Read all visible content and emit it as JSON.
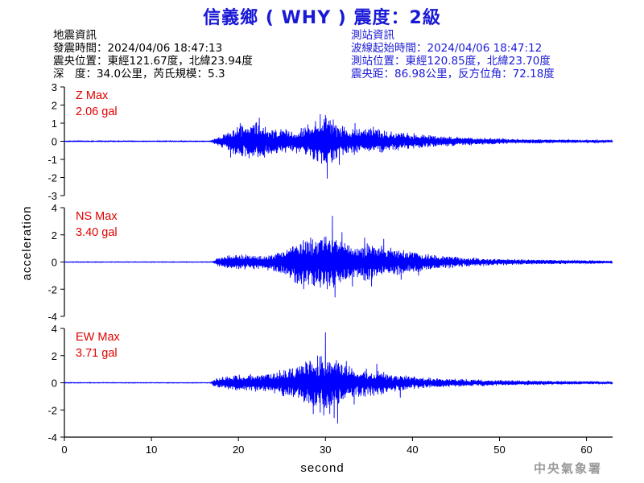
{
  "page": {
    "title": "信義鄉 ( WHY ) 震度：2級",
    "agency": "中央氣象署"
  },
  "earthquake_info": {
    "header": "地震資訊",
    "origin_time": "發震時間：2024/04/06 18:47:13",
    "epicenter": "震央位置：東經121.67度，北緯23.94度",
    "depth_magnitude": "深　度：34.0公里，芮氏規模：5.3"
  },
  "station_info": {
    "header": "測站資訊",
    "wave_start": "波線起始時間：2024/04/06 18:47:12",
    "location": "測站位置：東經120.85度，北緯23.70度",
    "distance_azimuth": "震央距：86.98公里，反方位角：72.18度"
  },
  "chart_data": {
    "type": "line",
    "xlabel": "second",
    "ylabel": "acceleration",
    "xlim": [
      0,
      63
    ],
    "x_ticks": [
      0,
      10,
      20,
      30,
      40,
      50,
      60
    ],
    "line_color": "#0000ff",
    "annotation_color": "#e00000",
    "panels": [
      {
        "component": "Z",
        "max_label": "Z Max",
        "max_value": "2.06 gal",
        "ylim": [
          -3,
          3
        ],
        "y_ticks": [
          -3,
          -2,
          -1,
          0,
          1,
          2,
          3
        ],
        "envelope": [
          [
            0,
            0.02
          ],
          [
            16.8,
            0.02
          ],
          [
            17.3,
            0.15
          ],
          [
            18,
            0.3
          ],
          [
            19,
            0.55
          ],
          [
            20,
            0.75
          ],
          [
            21,
            0.95
          ],
          [
            22,
            1.05
          ],
          [
            23,
            0.9
          ],
          [
            24,
            0.7
          ],
          [
            25,
            0.65
          ],
          [
            26,
            0.6
          ],
          [
            27,
            0.65
          ],
          [
            28,
            0.9
          ],
          [
            29,
            1.1
          ],
          [
            30,
            1.3
          ],
          [
            31,
            1.05
          ],
          [
            32,
            0.8
          ],
          [
            33,
            0.7
          ],
          [
            34,
            0.75
          ],
          [
            35,
            0.7
          ],
          [
            36,
            0.65
          ],
          [
            37,
            0.55
          ],
          [
            38,
            0.5
          ],
          [
            40,
            0.42
          ],
          [
            42,
            0.32
          ],
          [
            45,
            0.24
          ],
          [
            48,
            0.18
          ],
          [
            52,
            0.12
          ],
          [
            56,
            0.09
          ],
          [
            60,
            0.07
          ],
          [
            63,
            0.06
          ]
        ],
        "peaks": [
          [
            19.1,
            -0.9
          ],
          [
            20.2,
            1.0
          ],
          [
            22.4,
            1.3
          ],
          [
            23,
            -0.9
          ],
          [
            29.4,
            1.5
          ],
          [
            30,
            1.45
          ],
          [
            30.2,
            -2.06
          ],
          [
            30.9,
            1.2
          ],
          [
            31.6,
            -1.3
          ],
          [
            33.4,
            1.0
          ],
          [
            35.5,
            0.8
          ]
        ]
      },
      {
        "component": "NS",
        "max_label": "NS Max",
        "max_value": "3.40 gal",
        "ylim": [
          -4,
          4
        ],
        "y_ticks": [
          -4,
          -2,
          0,
          2,
          4
        ],
        "envelope": [
          [
            0,
            0.02
          ],
          [
            17,
            0.02
          ],
          [
            17.5,
            0.25
          ],
          [
            18.5,
            0.45
          ],
          [
            20,
            0.55
          ],
          [
            22,
            0.5
          ],
          [
            24,
            0.6
          ],
          [
            25,
            0.9
          ],
          [
            26,
            1.2
          ],
          [
            27,
            1.6
          ],
          [
            28,
            1.8
          ],
          [
            29,
            1.85
          ],
          [
            30,
            2.0
          ],
          [
            31,
            1.8
          ],
          [
            32,
            1.4
          ],
          [
            33,
            1.3
          ],
          [
            34,
            1.2
          ],
          [
            35,
            1.3
          ],
          [
            36,
            1.15
          ],
          [
            37,
            1.05
          ],
          [
            38,
            0.9
          ],
          [
            40,
            0.75
          ],
          [
            42,
            0.55
          ],
          [
            44,
            0.45
          ],
          [
            46,
            0.35
          ],
          [
            48,
            0.28
          ],
          [
            52,
            0.2
          ],
          [
            56,
            0.15
          ],
          [
            60,
            0.12
          ],
          [
            63,
            0.1
          ]
        ],
        "peaks": [
          [
            27.5,
            -2.0
          ],
          [
            28.3,
            1.8
          ],
          [
            30.2,
            -2.0
          ],
          [
            30.8,
            3.4
          ],
          [
            31.1,
            -2.6
          ],
          [
            31.9,
            2.2
          ],
          [
            33.1,
            -1.8
          ],
          [
            34.5,
            1.8
          ],
          [
            35.3,
            -1.8
          ],
          [
            36.7,
            1.7
          ],
          [
            38.7,
            -1.3
          ],
          [
            40.7,
            -1.0
          ]
        ]
      },
      {
        "component": "EW",
        "max_label": "EW Max",
        "max_value": "3.71 gal",
        "ylim": [
          -4,
          4
        ],
        "y_ticks": [
          -4,
          -2,
          0,
          2,
          4
        ],
        "envelope": [
          [
            0,
            0.02
          ],
          [
            16.8,
            0.02
          ],
          [
            17.3,
            0.3
          ],
          [
            18.5,
            0.5
          ],
          [
            20,
            0.55
          ],
          [
            22,
            0.6
          ],
          [
            24,
            0.7
          ],
          [
            25,
            0.9
          ],
          [
            26,
            1.1
          ],
          [
            27,
            1.2
          ],
          [
            28,
            1.6
          ],
          [
            29,
            1.8
          ],
          [
            30,
            2.0
          ],
          [
            31,
            1.7
          ],
          [
            32,
            1.4
          ],
          [
            33,
            1.1
          ],
          [
            34,
            1.0
          ],
          [
            35,
            0.95
          ],
          [
            36,
            0.85
          ],
          [
            37,
            0.75
          ],
          [
            38,
            0.6
          ],
          [
            40,
            0.45
          ],
          [
            42,
            0.35
          ],
          [
            44,
            0.3
          ],
          [
            46,
            0.25
          ],
          [
            50,
            0.2
          ],
          [
            55,
            0.14
          ],
          [
            60,
            0.1
          ],
          [
            63,
            0.09
          ]
        ],
        "peaks": [
          [
            28.6,
            -2.3
          ],
          [
            29.1,
            2.0
          ],
          [
            29.4,
            -2.2
          ],
          [
            29.8,
            -2.4
          ],
          [
            30,
            3.71
          ],
          [
            30.5,
            -2.3
          ],
          [
            31,
            -2.6
          ],
          [
            31.4,
            -3.0
          ],
          [
            32.4,
            1.6
          ],
          [
            33.3,
            -1.6
          ],
          [
            35.9,
            1.4
          ],
          [
            38.6,
            -1.1
          ]
        ]
      }
    ]
  }
}
